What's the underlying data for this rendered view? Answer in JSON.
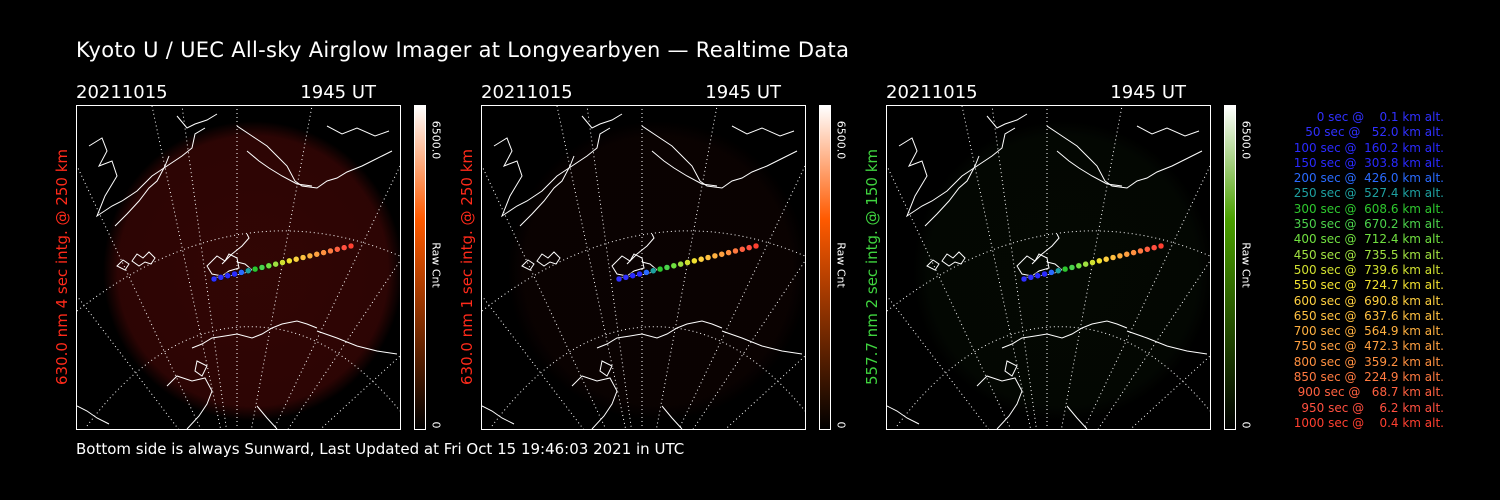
{
  "title": "Kyoto U / UEC All-sky Airglow Imager at Longyearbyen — Realtime Data",
  "footer": "Bottom side is always Sunward, Last Updated at Fri Oct 15 19:46:03 2021 in UTC",
  "panels": [
    {
      "date": "20211015",
      "time": "1945 UT",
      "side_label": "630.0 nm 4 sec intg. @ 250 km",
      "side_color": "#ff2a1a",
      "cbar_max": "6500.0",
      "cbar_min": "0",
      "cbar_unit": "Raw Cnt",
      "cbar_top": "#ffffff",
      "cbar_mid": "#ff5a00",
      "cbar_bottom": "#000000",
      "glow_color": "#5a0a08",
      "glow_level": 0.55
    },
    {
      "date": "20211015",
      "time": "1945 UT",
      "side_label": "630.0 nm 1 sec intg. @ 250 km",
      "side_color": "#ff2a1a",
      "cbar_max": "6500.0",
      "cbar_min": "0",
      "cbar_unit": "Raw Cnt",
      "cbar_top": "#ffffff",
      "cbar_mid": "#ff5a00",
      "cbar_bottom": "#000000",
      "glow_color": "#1e0504",
      "glow_level": 0.35
    },
    {
      "date": "20211015",
      "time": "1945 UT",
      "side_label": "557.7 nm 2 sec intg. @ 150 km",
      "side_color": "#3fd43f",
      "cbar_max": "6500.0",
      "cbar_min": "0",
      "cbar_unit": "Raw Cnt",
      "cbar_top": "#ffffff",
      "cbar_mid": "#4aa000",
      "cbar_bottom": "#000000",
      "glow_color": "#0c1a08",
      "glow_level": 0.3
    }
  ],
  "legend": [
    {
      "text": "0 sec @    0.1 km alt.",
      "color": "#3030ff"
    },
    {
      "text": "50 sec @   52.0 km alt.",
      "color": "#3030ff"
    },
    {
      "text": "100 sec @  160.2 km alt.",
      "color": "#2a2aff"
    },
    {
      "text": "150 sec @  303.8 km alt.",
      "color": "#2a2aff"
    },
    {
      "text": "200 sec @  426.0 km alt.",
      "color": "#2a6aff"
    },
    {
      "text": "250 sec @  527.4 km alt.",
      "color": "#1ea0a0"
    },
    {
      "text": "300 sec @  608.6 km alt.",
      "color": "#2ec82e"
    },
    {
      "text": "350 sec @  670.2 km alt.",
      "color": "#4bd24b"
    },
    {
      "text": "400 sec @  712.4 km alt.",
      "color": "#70e040"
    },
    {
      "text": "450 sec @  735.5 km alt.",
      "color": "#a0e040"
    },
    {
      "text": "500 sec @  739.6 km alt.",
      "color": "#d0e030"
    },
    {
      "text": "550 sec @  724.7 km alt.",
      "color": "#f0e030"
    },
    {
      "text": "600 sec @  690.8 km alt.",
      "color": "#ffd040"
    },
    {
      "text": "650 sec @  637.6 km alt.",
      "color": "#ffc040"
    },
    {
      "text": "700 sec @  564.9 km alt.",
      "color": "#ffb040"
    },
    {
      "text": "750 sec @  472.3 km alt.",
      "color": "#ffa040"
    },
    {
      "text": "800 sec @  359.2 km alt.",
      "color": "#ff9040"
    },
    {
      "text": "850 sec @  224.9 km alt.",
      "color": "#ff7a40"
    },
    {
      "text": "900 sec @   68.7 km alt.",
      "color": "#ff6040"
    },
    {
      "text": "950 sec @    6.2 km alt.",
      "color": "#ff5040"
    },
    {
      "text": "1000 sec @    0.4 km alt.",
      "color": "#ff4030"
    }
  ]
}
